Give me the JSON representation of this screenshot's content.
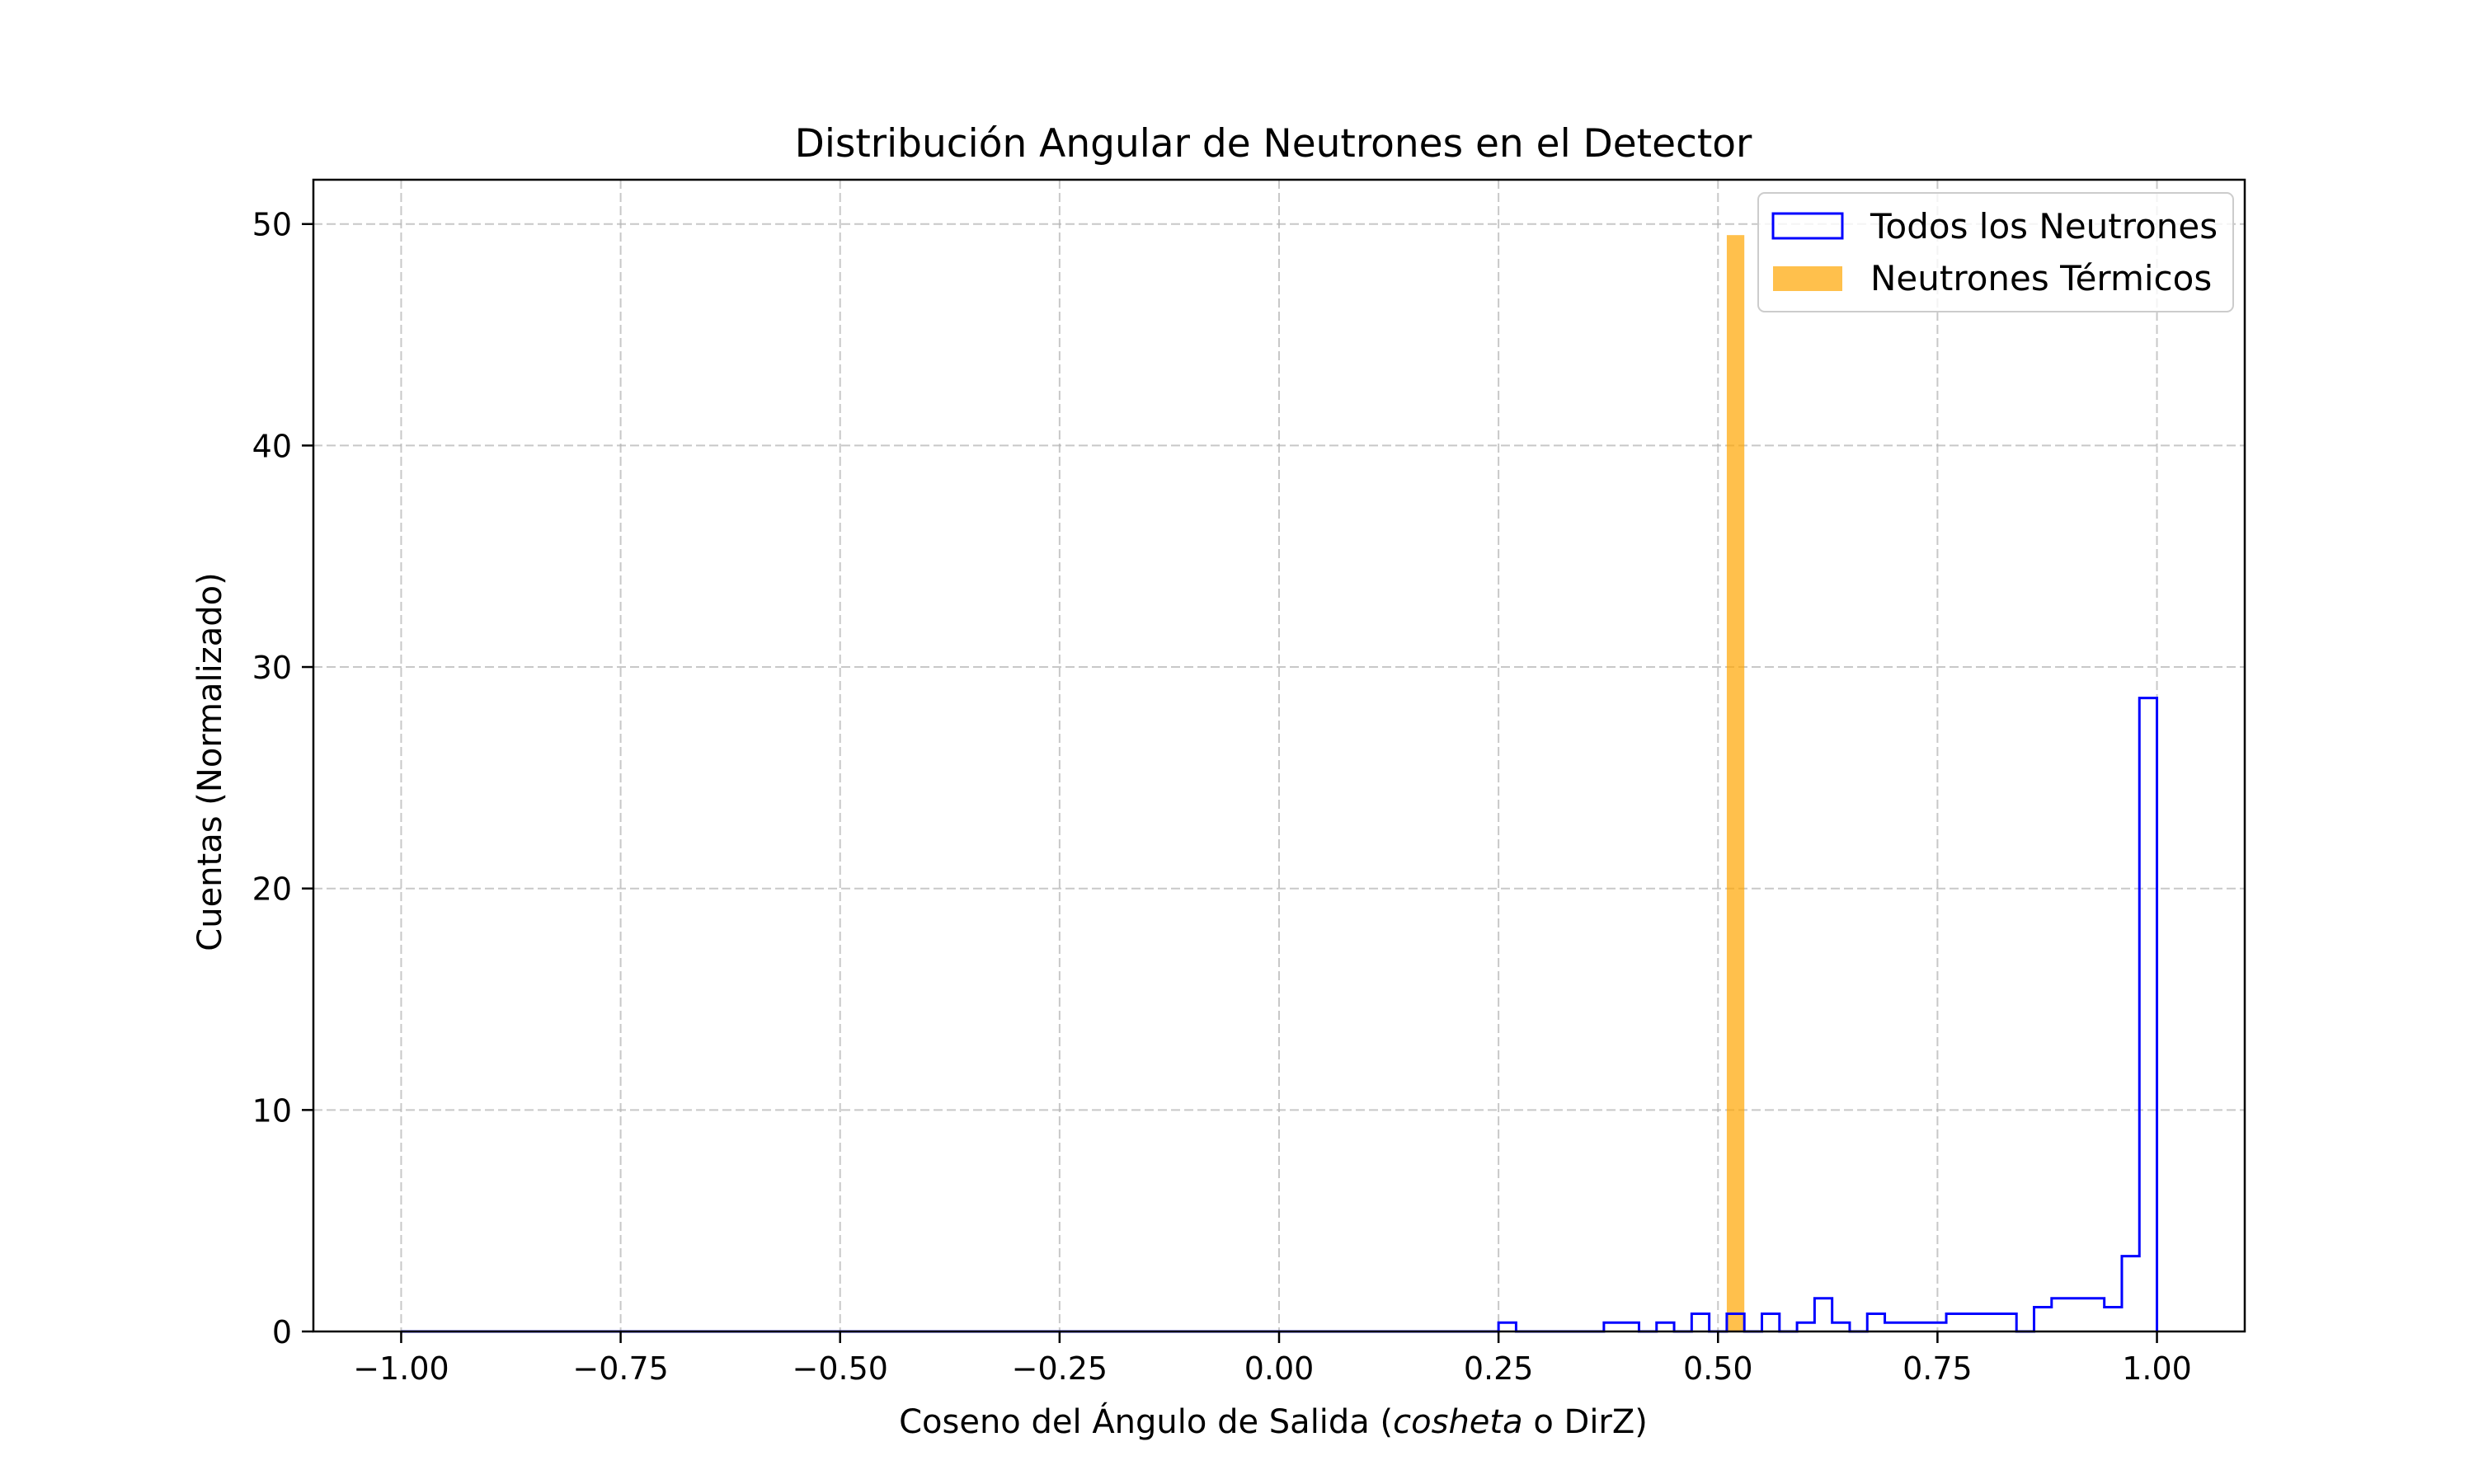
{
  "chart_data": {
    "type": "histogram",
    "title": "Distribución Angular de Neutrones en el Detector",
    "xlabel": {
      "prefix": "Coseno del Ángulo de Salida (",
      "italic": "cosheta",
      "suffix": " o DirZ)"
    },
    "ylabel": "Cuentas (Normalizado)",
    "xlim": [
      -1.1,
      1.1
    ],
    "ylim": [
      0,
      52
    ],
    "xticks": [
      -1.0,
      -0.75,
      -0.5,
      -0.25,
      0.0,
      0.25,
      0.5,
      0.75,
      1.0
    ],
    "xtick_labels": [
      "−1.00",
      "−0.75",
      "−0.50",
      "−0.25",
      "0.00",
      "0.25",
      "0.50",
      "0.75",
      "1.00"
    ],
    "yticks": [
      0,
      10,
      20,
      30,
      40,
      50
    ],
    "ytick_labels": [
      "0",
      "10",
      "20",
      "30",
      "40",
      "50"
    ],
    "grid": true,
    "legend_position": "top-right",
    "series": [
      {
        "name": "Todos los Neutrones",
        "style": "step",
        "color": "#0000ff",
        "bin_edges": [
          -1.0,
          0.25,
          0.27,
          0.37,
          0.41,
          0.43,
          0.45,
          0.47,
          0.49,
          0.51,
          0.53,
          0.55,
          0.57,
          0.59,
          0.61,
          0.63,
          0.65,
          0.67,
          0.69,
          0.71,
          0.76,
          0.84,
          0.86,
          0.88,
          0.94,
          0.96,
          0.98,
          1.0
        ],
        "values": [
          0,
          0.4,
          0,
          0.4,
          0,
          0.4,
          0,
          0.8,
          0,
          0.8,
          0,
          0.8,
          0,
          0.4,
          1.5,
          0.4,
          0,
          0.8,
          0.4,
          0.4,
          0.8,
          0,
          1.1,
          1.5,
          1.1,
          3.4,
          28.6
        ]
      },
      {
        "name": "Neutrones Térmicos",
        "style": "bar",
        "color": "#ffa500",
        "opacity": 0.7,
        "bin_edges": [
          0.51,
          0.53
        ],
        "values": [
          49.5
        ]
      }
    ]
  }
}
